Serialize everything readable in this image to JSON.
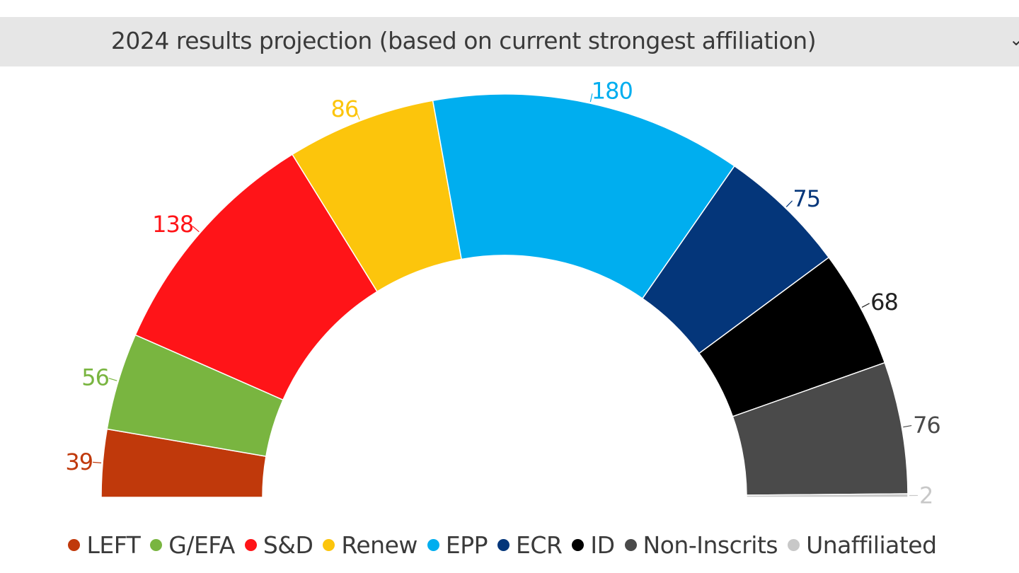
{
  "header": {
    "title": "2024 results projection (based on current strongest affiliation)",
    "toggle_icon": "chevron-down-icon"
  },
  "chart_data": {
    "type": "pie",
    "variant": "semicircle-parliament",
    "title": "2024 results projection (based on current strongest affiliation)",
    "categories": [
      "LEFT",
      "G/EFA",
      "S&D",
      "Renew",
      "EPP",
      "ECR",
      "ID",
      "Non-Inscrits",
      "Unaffiliated"
    ],
    "values": [
      39,
      56,
      138,
      86,
      180,
      75,
      68,
      76,
      2
    ],
    "colors": [
      "#c0390b",
      "#79b540",
      "#ff1418",
      "#fcc50c",
      "#00aeef",
      "#04367a",
      "#000000",
      "#4a4a4a",
      "#c8c8c8"
    ],
    "label_colors": [
      "#c0390b",
      "#79b540",
      "#ff1418",
      "#fcc50c",
      "#00aeef",
      "#04367a",
      "#222222",
      "#4a4a4a",
      "#c8c8c8"
    ],
    "legend_position": "bottom"
  }
}
